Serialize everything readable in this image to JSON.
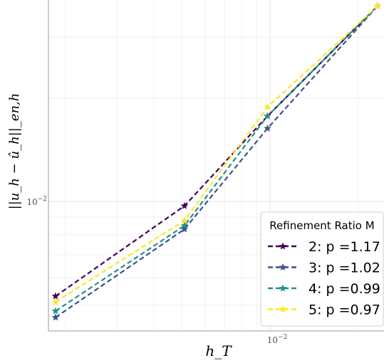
{
  "chart_data": {
    "type": "line",
    "xscale": "log",
    "yscale": "log",
    "xlabel": "h_T",
    "ylabel": "||u_h − û_h||_en,h",
    "xlim": [
      0.00175,
      0.0245
    ],
    "ylim": [
      0.0042,
      0.0385
    ],
    "x_ticks": [
      {
        "value": 0.01,
        "label": "10^-2"
      }
    ],
    "y_ticks": [
      {
        "value": 0.01,
        "label": "10^-2"
      }
    ],
    "grid": true,
    "legend": {
      "title": "Refinement Ratio M",
      "placement": "bottom-right"
    },
    "series": [
      {
        "name": "2: p =1.17",
        "color": "#440154",
        "x": [
          0.00185,
          0.0051,
          0.0098,
          0.0233
        ],
        "y": [
          0.0053,
          0.0097,
          0.0177,
          0.037
        ]
      },
      {
        "name": "3: p =1.02",
        "color": "#3b528b",
        "x": [
          0.00185,
          0.0051,
          0.0098,
          0.0233
        ],
        "y": [
          0.0046,
          0.0083,
          0.0163,
          0.037
        ]
      },
      {
        "name": "4: p =0.99",
        "color": "#21918c",
        "x": [
          0.00185,
          0.0051,
          0.0098,
          0.0233
        ],
        "y": [
          0.0048,
          0.0085,
          0.0177,
          0.037
        ]
      },
      {
        "name": "5: p =0.97",
        "color": "#fde725",
        "x": [
          0.00185,
          0.0051,
          0.0098,
          0.0233
        ],
        "y": [
          0.0051,
          0.0088,
          0.0188,
          0.037
        ]
      }
    ]
  }
}
